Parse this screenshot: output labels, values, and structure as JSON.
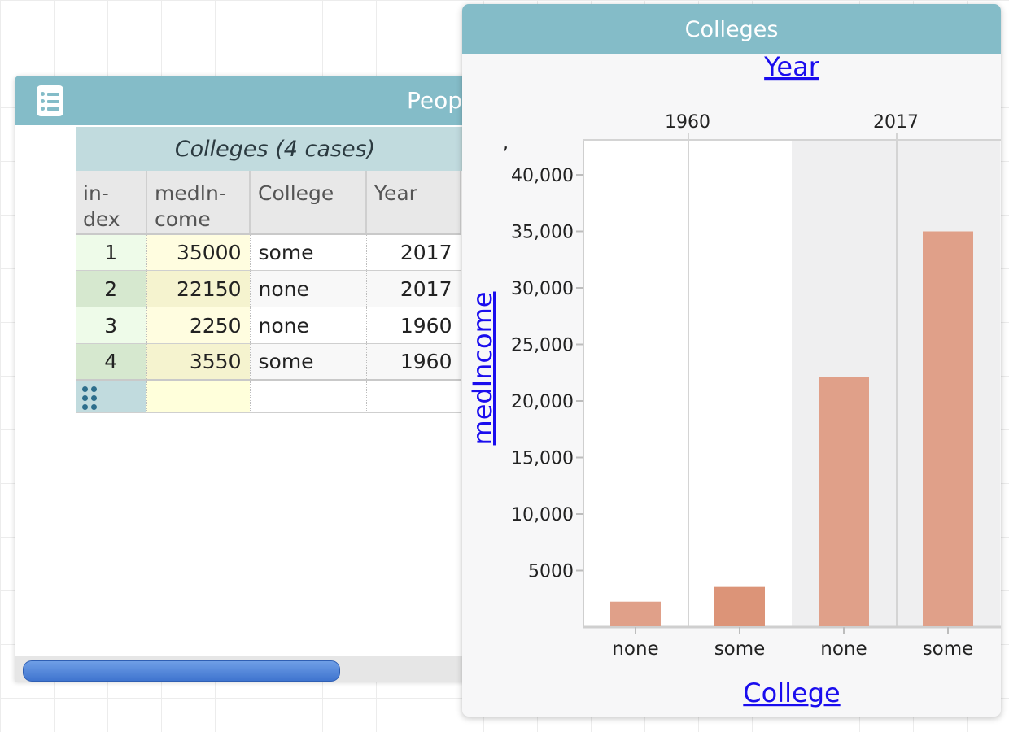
{
  "table_window": {
    "title": "Peop",
    "collection_header": "Colleges (4 cases)",
    "columns": [
      "in-dex",
      "medIn-come",
      "College",
      "Year"
    ],
    "column_lines": [
      [
        "in-",
        "dex"
      ],
      [
        "medIn-",
        "come"
      ],
      [
        "College"
      ],
      [
        "Year"
      ]
    ],
    "rows": [
      {
        "index": "1",
        "medIncome": "35000",
        "College": "some",
        "Year": "2017"
      },
      {
        "index": "2",
        "medIncome": "22150",
        "College": "none",
        "Year": "2017"
      },
      {
        "index": "3",
        "medIncome": "2250",
        "College": "none",
        "Year": "1960"
      },
      {
        "index": "4",
        "medIncome": "3550",
        "College": "some",
        "Year": "1960"
      }
    ]
  },
  "graph_window": {
    "title": "Colleges",
    "top_axis_label": "Year",
    "y_axis_label": "medIncome",
    "x_axis_label": "College",
    "stray_mark": ","
  },
  "colors": {
    "titlebar": "#84bcc8",
    "bar": "#e0a089",
    "bar_selected": "#dc9478",
    "link": "#1a0dee"
  },
  "chart_data": {
    "type": "bar",
    "title": "",
    "xlabel": "College",
    "ylabel": "medIncome",
    "top_label": "Year",
    "top_categories": [
      "1960",
      "2017"
    ],
    "categories": [
      "none",
      "some",
      "none",
      "some"
    ],
    "values": [
      2250,
      3550,
      22150,
      35000
    ],
    "ylim": [
      0,
      40000
    ],
    "yticks": [
      5000,
      10000,
      15000,
      20000,
      25000,
      30000,
      35000,
      40000
    ],
    "ytick_labels": [
      "5000",
      "10,000",
      "15,000",
      "20,000",
      "25,000",
      "30,000",
      "35,000",
      "40,000"
    ],
    "grid": false
  }
}
